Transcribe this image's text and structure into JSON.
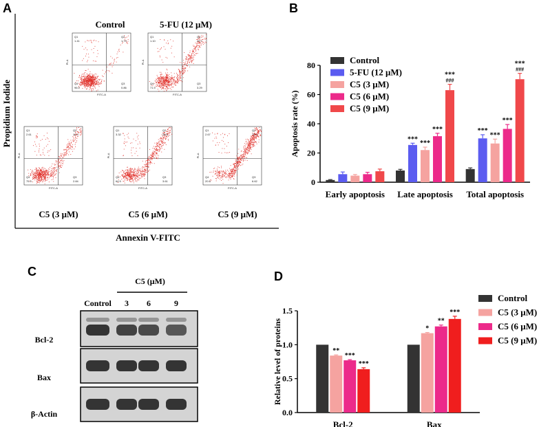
{
  "panels": {
    "A": "A",
    "B": "B",
    "C": "C",
    "D": "D"
  },
  "flow": {
    "ylabel": "Propidium Iodide",
    "xlabel": "Annexin V-FITC",
    "plots": [
      {
        "title": "Control",
        "q": [
          "1.41",
          "1.73",
          "0.86",
          "96.0"
        ],
        "spread": 0.1
      },
      {
        "title": "5-FU (12 μM)",
        "q": [
          "1.10",
          "23.7",
          "3.29",
          "71.9"
        ],
        "spread": 0.5
      },
      {
        "title": "C5 (3 μM)",
        "q": [
          "2.61",
          "19.3",
          "2.84",
          "75.3"
        ],
        "spread": 0.42
      },
      {
        "title": "C5 (6 μM)",
        "q": [
          "3.32",
          "28.6",
          "3.61",
          "64.5"
        ],
        "spread": 0.6
      },
      {
        "title": "C5 (9 μM)",
        "q": [
          "2.67",
          "70.3",
          "6.62",
          "20.5"
        ],
        "spread": 0.95
      }
    ],
    "axis_x": "FITC-A",
    "axis_y": "PI-A",
    "quadrants": [
      "Q1",
      "Q2",
      "Q3",
      "Q4"
    ]
  },
  "western": {
    "group_label": "C5 (μM)",
    "lanes": [
      "Control",
      "3",
      "6",
      "9"
    ],
    "proteins": [
      "Bcl-2",
      "Bax",
      "β-Actin"
    ],
    "band_intensity": [
      [
        1.0,
        0.85,
        0.78,
        0.64
      ],
      [
        1.0,
        1.0,
        1.0,
        1.0
      ],
      [
        1.0,
        1.0,
        1.0,
        1.0
      ]
    ]
  },
  "chart_data": [
    {
      "type": "bar",
      "ylabel": "Apoptosis rate (%)",
      "ylim": [
        0,
        80
      ],
      "yticks": [
        "0",
        "20",
        "40",
        "60",
        "80"
      ],
      "categories": [
        "Early apoptosis",
        "Late apoptosis",
        "Total apoptosis"
      ],
      "legend_position": "top-left",
      "series": [
        {
          "name": "Control",
          "color": "#333333",
          "values": [
            1.5,
            8,
            9
          ],
          "errors": [
            0.3,
            0.8,
            0.8
          ],
          "sig": [
            "",
            "",
            ""
          ]
        },
        {
          "name": "5-FU (12 μM)",
          "color": "#5b5cf0",
          "values": [
            5.5,
            25.5,
            30
          ],
          "errors": [
            1.5,
            1.2,
            2.5
          ],
          "sig": [
            "",
            "***",
            "***"
          ]
        },
        {
          "name": "C5 (3 μM)",
          "color": "#f5a3a0",
          "values": [
            4.5,
            22,
            26.5
          ],
          "errors": [
            0.8,
            2,
            3
          ],
          "sig": [
            "",
            "***",
            "***"
          ]
        },
        {
          "name": "C5 (6 μM)",
          "color": "#ec2a8a",
          "values": [
            5.5,
            31.5,
            36.5
          ],
          "errors": [
            1.3,
            2,
            3
          ],
          "sig": [
            "",
            "***",
            "***"
          ]
        },
        {
          "name": "C5 (9 μM)",
          "color": "#f0484a",
          "values": [
            7.5,
            63,
            70.5
          ],
          "errors": [
            1.5,
            4,
            4
          ],
          "sig": [
            "",
            "***\n###",
            "***\n###"
          ]
        }
      ]
    },
    {
      "type": "bar",
      "ylabel": "Relative level of proteins",
      "ylim": [
        0,
        1.5
      ],
      "yticks": [
        "0.0",
        "0.5",
        "1.0",
        "1.5"
      ],
      "categories": [
        "Bcl-2",
        "Bax"
      ],
      "legend_position": "right",
      "series": [
        {
          "name": "Control",
          "color": "#333333",
          "values": [
            1.0,
            1.0
          ],
          "errors": [
            0,
            0
          ],
          "sig": [
            "",
            ""
          ]
        },
        {
          "name": "C5 (3 μM)",
          "color": "#f5a3a0",
          "values": [
            0.84,
            1.17
          ],
          "errors": [
            0.01,
            0.01
          ],
          "sig": [
            "**",
            "*"
          ]
        },
        {
          "name": "C5 (6 μM)",
          "color": "#ec2a8a",
          "values": [
            0.77,
            1.27
          ],
          "errors": [
            0.01,
            0.02
          ],
          "sig": [
            "***",
            "**"
          ]
        },
        {
          "name": "C5 (9 μM)",
          "color": "#f01e1e",
          "values": [
            0.64,
            1.38
          ],
          "errors": [
            0.02,
            0.04
          ],
          "sig": [
            "***",
            "***"
          ]
        }
      ]
    }
  ]
}
